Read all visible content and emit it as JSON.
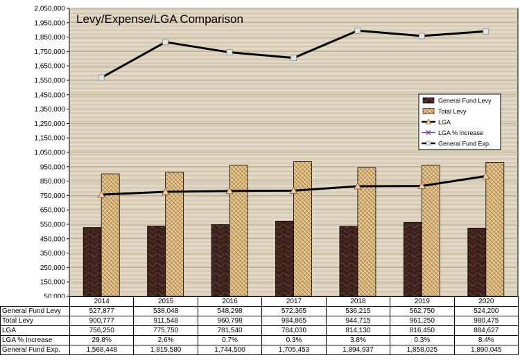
{
  "chart_data": {
    "type": "bar",
    "title": "Levy/Expense/LGA Comparison",
    "xlabel": "",
    "ylabel": "",
    "categories": [
      "2014",
      "2015",
      "2016",
      "2017",
      "2018",
      "2019",
      "2020"
    ],
    "ylim": [
      50000,
      2050000
    ],
    "yticks": [
      "2,050,000",
      "1,950,000",
      "1,850,000",
      "1,750,000",
      "1,650,000",
      "1,550,000",
      "1,450,000",
      "1,350,000",
      "1,250,000",
      "1,150,000",
      "1,050,000",
      "950,000",
      "850,000",
      "750,000",
      "650,000",
      "550,000",
      "450,000",
      "350,000",
      "250,000",
      "150,000",
      "50,000"
    ],
    "ytick_values": [
      2050000,
      1950000,
      1850000,
      1750000,
      1650000,
      1550000,
      1450000,
      1350000,
      1250000,
      1150000,
      1050000,
      950000,
      850000,
      750000,
      650000,
      550000,
      450000,
      350000,
      250000,
      150000,
      50000
    ],
    "grid": true,
    "legend_position": "right",
    "series": [
      {
        "name": "General Fund Levy",
        "kind": "bar",
        "color": "#4a2a22",
        "values": [
          527877,
          538048,
          548298,
          572365,
          536215,
          562750,
          524200
        ]
      },
      {
        "name": "Total Levy",
        "kind": "bar",
        "color": "#c9a66b",
        "values": [
          900777,
          911548,
          960798,
          984865,
          944715,
          961250,
          980475
        ]
      },
      {
        "name": "LGA",
        "kind": "line",
        "color": "#000000",
        "marker": "triangle",
        "values": [
          756250,
          775750,
          781540,
          784030,
          814130,
          816450,
          884627
        ]
      },
      {
        "name": "LGA % Increase",
        "kind": "line",
        "color": "#7a4f9a",
        "marker": "x",
        "values": [
          29.8,
          2.6,
          0.7,
          0.3,
          3.8,
          0.3,
          8.4
        ]
      },
      {
        "name": "General Fund Exp.",
        "kind": "line",
        "color": "#000000",
        "marker": "square",
        "values": [
          1568448,
          1815580,
          1744500,
          1705453,
          1894937,
          1858025,
          1890045
        ]
      }
    ],
    "table": {
      "columns": [
        "2014",
        "2015",
        "2016",
        "2017",
        "2018",
        "2019",
        "2020"
      ],
      "rows": [
        {
          "label": "General Fund Levy",
          "cells": [
            "527,877",
            "538,048",
            "548,298",
            "572,365",
            "536,215",
            "562,750",
            "524,200"
          ]
        },
        {
          "label": "Total Levy",
          "cells": [
            "900,777",
            "911,548",
            "960,798",
            "984,865",
            "944,715",
            "961,250",
            "980,475"
          ]
        },
        {
          "label": "LGA",
          "cells": [
            "756,250",
            "775,750",
            "781,540",
            "784,030",
            "814,130",
            "816,450",
            "884,627"
          ]
        },
        {
          "label": "LGA % Increase",
          "cells": [
            "29.8%",
            "2.6%",
            "0.7%",
            "0.3%",
            "3.8%",
            "0.3%",
            "8.4%"
          ]
        },
        {
          "label": "General Fund Exp.",
          "cells": [
            "1,568,448",
            "1,815,580",
            "1,744,500",
            "1,705,453",
            "1,894,937",
            "1,858,025",
            "1,890,045"
          ]
        }
      ]
    }
  }
}
